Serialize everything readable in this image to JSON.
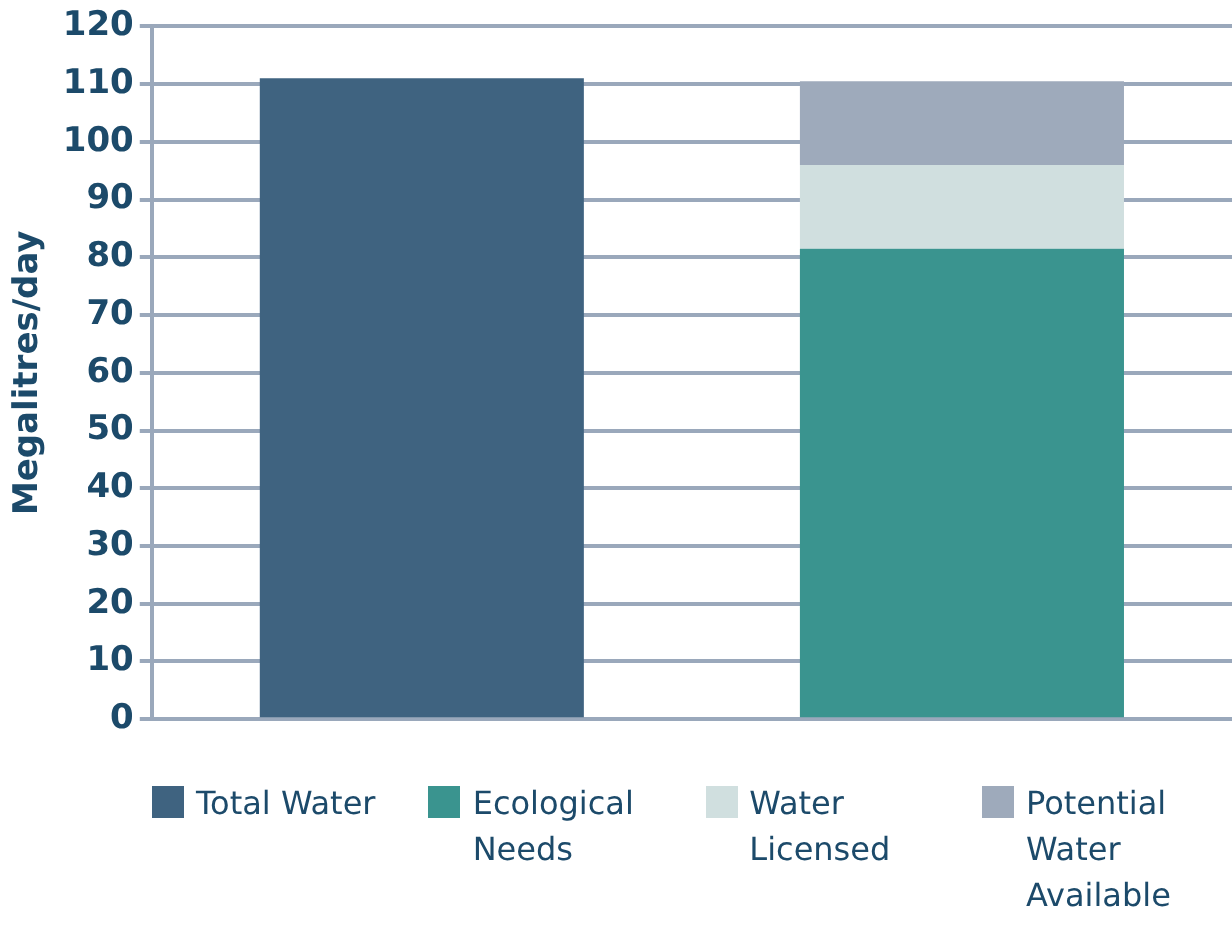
{
  "chart_data": {
    "type": "bar",
    "ylabel": "Megalitres/day",
    "categories": [
      null,
      null
    ],
    "stacked": true,
    "series": [
      {
        "name": "Total Water",
        "color": "#3f6380",
        "values": [
          111,
          null
        ]
      },
      {
        "name": "Ecological Needs",
        "color": "#3a948f",
        "values": [
          null,
          81.5
        ]
      },
      {
        "name": "Water Licensed",
        "color": "#d0dfdf",
        "values": [
          null,
          14.5
        ]
      },
      {
        "name": "Potential Water Available",
        "color": "#9eaabb",
        "values": [
          null,
          14.5
        ]
      }
    ],
    "ylim": [
      0,
      120
    ],
    "yticks": [
      0,
      10,
      20,
      30,
      40,
      50,
      60,
      70,
      80,
      90,
      100,
      110,
      120
    ],
    "grid": "y",
    "legend": "bottom"
  }
}
